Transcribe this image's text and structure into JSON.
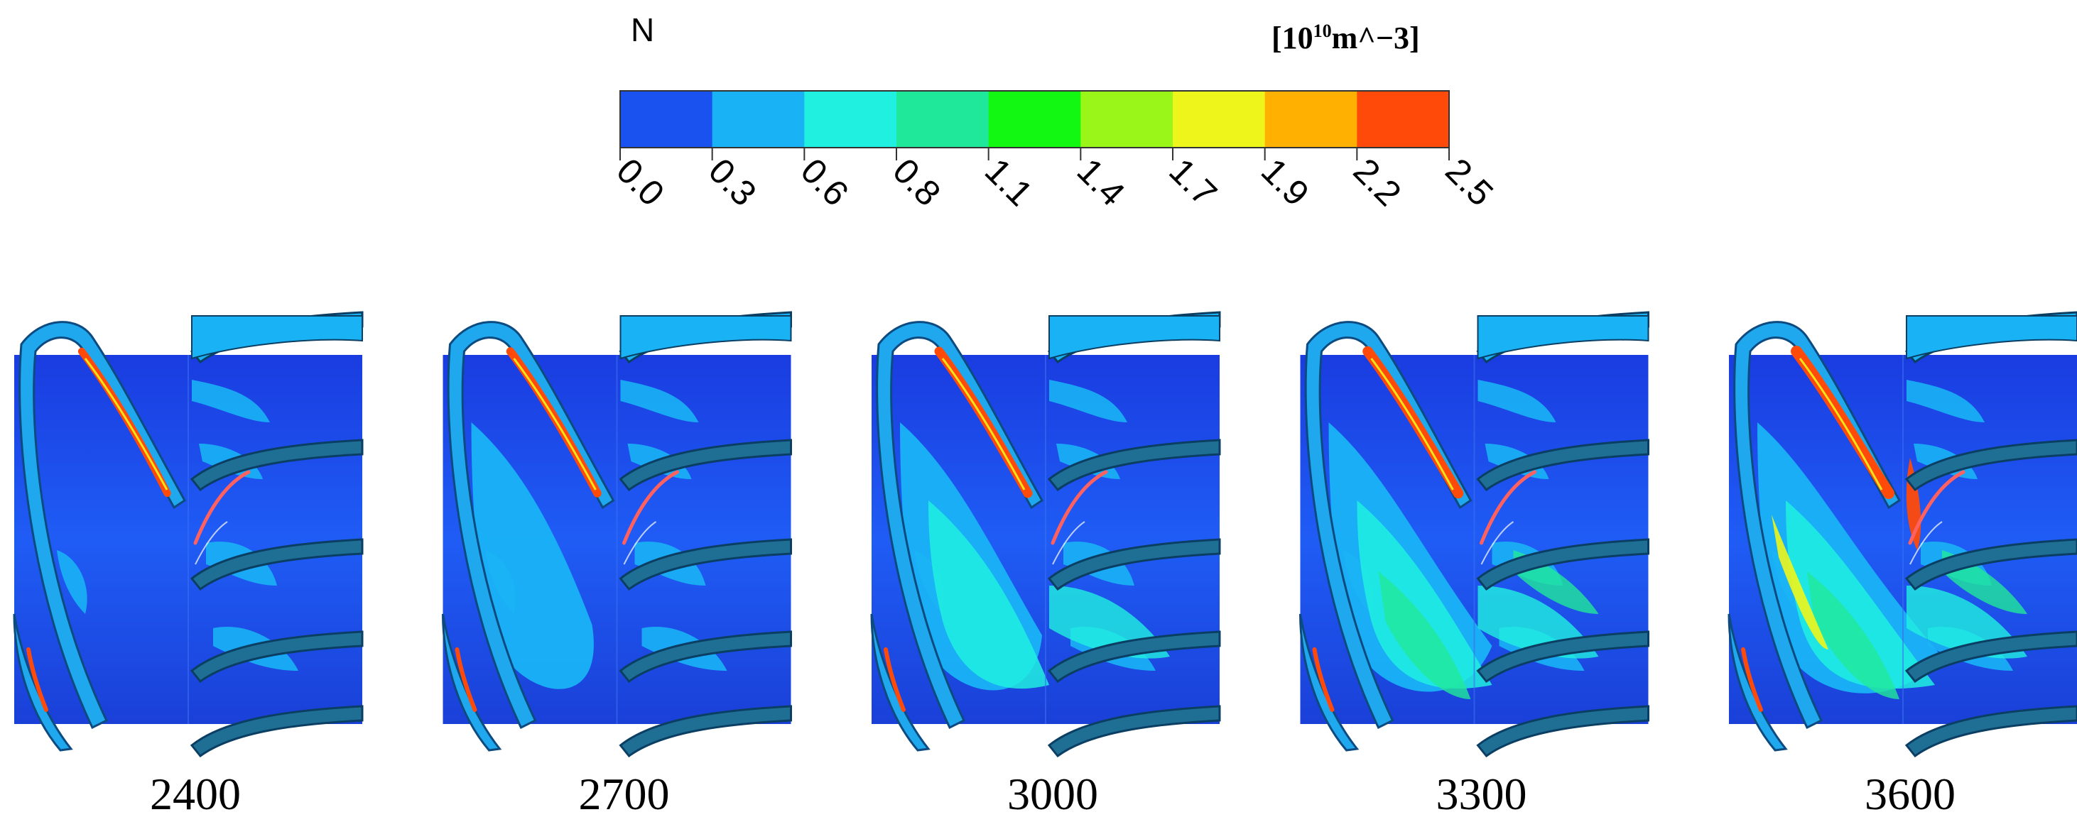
{
  "legend": {
    "variable": "N",
    "unit_prefix": "[10",
    "unit_exponent": "10",
    "unit_suffix": "m^−3]",
    "ticks": [
      "0.0",
      "0.3",
      "0.6",
      "0.8",
      "1.1",
      "1.4",
      "1.7",
      "1.9",
      "2.2",
      "2.5"
    ],
    "colors": [
      "#1a52f0",
      "#19b3f5",
      "#20f0e0",
      "#20e89a",
      "#12f812",
      "#9af518",
      "#eef51a",
      "#ffb000",
      "#ff4a0a"
    ]
  },
  "panels": [
    {
      "label": "2400",
      "level": 0.05
    },
    {
      "label": "2700",
      "level": 0.25
    },
    {
      "label": "3000",
      "level": 0.5
    },
    {
      "label": "3300",
      "level": 0.75
    },
    {
      "label": "3600",
      "level": 1.0
    }
  ]
}
